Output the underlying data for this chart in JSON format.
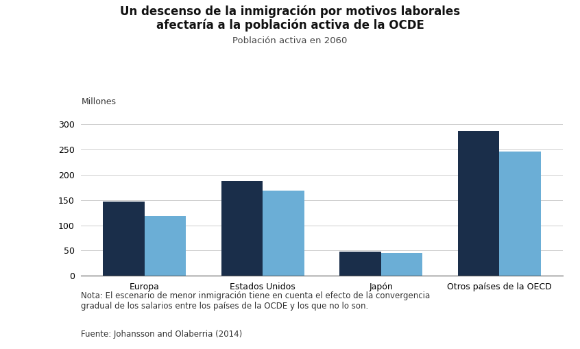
{
  "title_line1": "Un descenso de la inmigración por motivos laborales",
  "title_line2": "afectaría a la población activa de la OCDE",
  "subtitle": "Población activa en 2060",
  "ylabel": "Millones",
  "categories": [
    "Europa",
    "Estados Unidos",
    "Japón",
    "Otros países de la OECD"
  ],
  "series1_values": [
    147,
    188,
    48,
    287
  ],
  "series2_values": [
    118,
    168,
    45,
    246
  ],
  "color1": "#1a2e4a",
  "color2": "#6baed6",
  "ylim": [
    0,
    325
  ],
  "yticks": [
    0,
    50,
    100,
    150,
    200,
    250,
    300
  ],
  "note_line1": "Nota: El escenario de menor inmigración tiene en cuenta el efecto de la convergencia",
  "note_line2": "gradual de los salarios entre los países de la OCDE y los que no lo son.",
  "source": "Fuente: Johansson and Olaberria (2014)",
  "background_color": "#ffffff",
  "bar_width": 0.35,
  "title_fontsize": 12,
  "subtitle_fontsize": 9.5,
  "tick_fontsize": 9,
  "note_fontsize": 8.5,
  "source_fontsize": 8.5
}
